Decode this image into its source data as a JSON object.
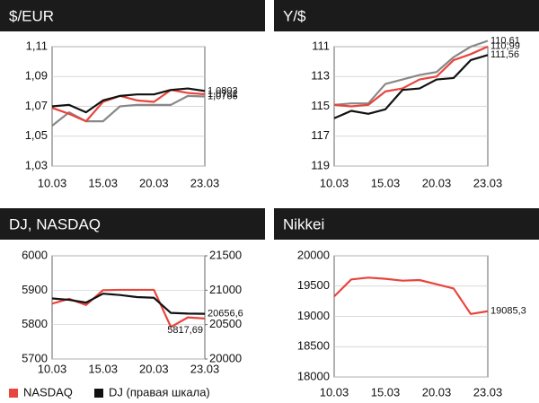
{
  "chart_data": [
    {
      "type": "line",
      "title": "$/EUR",
      "categories": [
        "10.03",
        null,
        null,
        "15.03",
        null,
        null,
        "20.03",
        null,
        null,
        "23.03"
      ],
      "ylim": [
        1.03,
        1.11
      ],
      "yticks": [
        {
          "value": 1.03,
          "label": "1,03"
        },
        {
          "value": 1.05,
          "label": "1,05"
        },
        {
          "value": 1.07,
          "label": "1,07"
        },
        {
          "value": 1.09,
          "label": "1,09"
        },
        {
          "value": 1.11,
          "label": "1,11"
        }
      ],
      "grid": true,
      "series": [
        {
          "color": "#888888",
          "values": [
            1.057,
            1.066,
            1.06,
            1.06,
            1.07,
            1.071,
            1.071,
            1.071,
            1.077,
            1.0766
          ],
          "value_labels": [
            null,
            null,
            null,
            null,
            null,
            null,
            null,
            null,
            null,
            "1,0766"
          ]
        },
        {
          "color": "#e8453c",
          "values": [
            1.069,
            1.065,
            1.06,
            1.073,
            1.077,
            1.074,
            1.073,
            1.081,
            1.079,
            1.0781
          ],
          "value_labels": [
            null,
            null,
            null,
            null,
            null,
            null,
            null,
            null,
            null,
            "1,0781"
          ]
        },
        {
          "color": "#111111",
          "values": [
            1.07,
            1.071,
            1.066,
            1.074,
            1.077,
            1.078,
            1.078,
            1.081,
            1.082,
            1.0803
          ],
          "value_labels": [
            null,
            null,
            null,
            null,
            null,
            null,
            null,
            null,
            null,
            "1,0803"
          ]
        }
      ]
    },
    {
      "type": "line",
      "title": "Y/$",
      "categories": [
        "10.03",
        null,
        null,
        "15.03",
        null,
        null,
        "20.03",
        null,
        null,
        "23.03"
      ],
      "ylim": [
        119,
        111
      ],
      "yticks": [
        111,
        113,
        115,
        117,
        119
      ],
      "grid": true,
      "series": [
        {
          "color": "#888888",
          "values": [
            114.9,
            114.8,
            114.8,
            113.5,
            113.2,
            112.9,
            112.7,
            111.7,
            111.0,
            110.61
          ],
          "value_labels": [
            null,
            null,
            null,
            null,
            null,
            null,
            null,
            null,
            null,
            "110,61"
          ]
        },
        {
          "color": "#e8453c",
          "values": [
            114.9,
            115.0,
            114.9,
            114.0,
            113.8,
            113.2,
            113.0,
            111.9,
            111.5,
            110.99
          ],
          "value_labels": [
            null,
            null,
            null,
            null,
            null,
            null,
            null,
            null,
            null,
            "110,99"
          ]
        },
        {
          "color": "#111111",
          "values": [
            115.8,
            115.3,
            115.5,
            115.2,
            113.9,
            113.8,
            113.2,
            113.1,
            111.9,
            111.56
          ],
          "value_labels": [
            null,
            null,
            null,
            null,
            null,
            null,
            null,
            null,
            null,
            "111,56"
          ]
        }
      ]
    },
    {
      "type": "line",
      "title": "DJ, NASDAQ",
      "categories": [
        "10.03",
        null,
        null,
        "15.03",
        null,
        null,
        "20.03",
        null,
        null,
        "23.03"
      ],
      "ylim": [
        5700,
        6000
      ],
      "yticks": [
        5700,
        5800,
        5900,
        6000
      ],
      "y2lim": [
        20000,
        21500
      ],
      "y2ticks": [
        20000,
        20500,
        21000,
        21500
      ],
      "grid": true,
      "series": [
        {
          "name": "NASDAQ",
          "color": "#e8453c",
          "values": [
            5861,
            5875,
            5857,
            5900,
            5901,
            5901,
            5901,
            5793,
            5821,
            5817.69
          ],
          "value_labels": [
            null,
            null,
            null,
            null,
            null,
            null,
            null,
            null,
            null,
            "5817,69"
          ]
        },
        {
          "name": "DJ (правая шкала)",
          "color": "#111111",
          "axis": "y2",
          "values": [
            20880,
            20860,
            20820,
            20950,
            20930,
            20900,
            20890,
            20670,
            20660,
            20656.6
          ],
          "value_labels": [
            null,
            null,
            null,
            null,
            null,
            null,
            null,
            null,
            null,
            "20656,6"
          ]
        }
      ]
    },
    {
      "type": "line",
      "title": "Nikkei",
      "categories": [
        "10.03",
        null,
        null,
        "15.03",
        null,
        null,
        "20.03",
        null,
        null,
        "23.03"
      ],
      "ylim": [
        18000,
        20000
      ],
      "yticks": [
        18000,
        18500,
        19000,
        19500,
        20000
      ],
      "grid": true,
      "series": [
        {
          "color": "#e8453c",
          "values": [
            19330,
            19610,
            19640,
            19620,
            19590,
            19600,
            19530,
            19460,
            19040,
            19085.3
          ],
          "value_labels": [
            null,
            null,
            null,
            null,
            null,
            null,
            null,
            null,
            null,
            "19085,3"
          ]
        }
      ]
    }
  ]
}
